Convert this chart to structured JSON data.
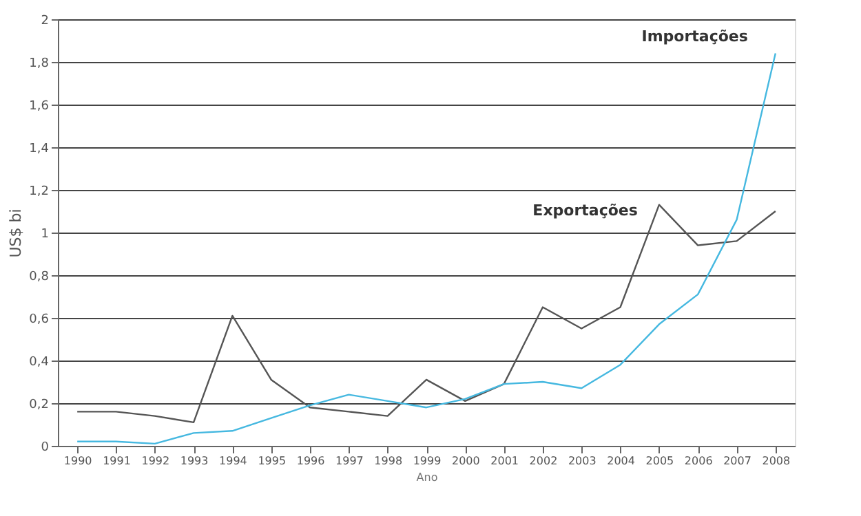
{
  "chart_data": {
    "type": "line",
    "xlabel": "Ano",
    "ylabel": "US$ bi",
    "categories": [
      "1990",
      "1991",
      "1992",
      "1993",
      "1994",
      "1995",
      "1996",
      "1997",
      "1998",
      "1999",
      "2000",
      "2001",
      "2002",
      "2003",
      "2004",
      "2005",
      "2006",
      "2007",
      "2008"
    ],
    "series": [
      {
        "name": "Exportações",
        "color": "#555555",
        "values": [
          0.16,
          0.16,
          0.14,
          0.11,
          0.61,
          0.31,
          0.18,
          0.16,
          0.14,
          0.31,
          0.21,
          0.29,
          0.65,
          0.55,
          0.65,
          1.13,
          0.94,
          0.96,
          1.1
        ]
      },
      {
        "name": "Importações",
        "color": "#45b8e0",
        "values": [
          0.02,
          0.02,
          0.01,
          0.06,
          0.07,
          0.13,
          0.19,
          0.24,
          0.21,
          0.18,
          0.22,
          0.29,
          0.3,
          0.27,
          0.38,
          0.57,
          0.71,
          1.06,
          1.84
        ]
      }
    ],
    "ylim": [
      0,
      2
    ],
    "yticks": [
      0,
      {
        "value": 0.2,
        "label": "0,2"
      },
      {
        "value": 0.4,
        "label": "0,4"
      },
      {
        "value": 0.6,
        "label": "0,6"
      },
      {
        "value": 0.8,
        "label": "0,8"
      },
      1,
      {
        "value": 1.2,
        "label": "1,2"
      },
      {
        "value": 1.4,
        "label": "1,4"
      },
      {
        "value": 1.6,
        "label": "1,6"
      },
      {
        "value": 1.8,
        "label": "1,8"
      },
      2
    ],
    "grid": "y",
    "legend": false,
    "marker": "none",
    "line_style": "solid"
  }
}
